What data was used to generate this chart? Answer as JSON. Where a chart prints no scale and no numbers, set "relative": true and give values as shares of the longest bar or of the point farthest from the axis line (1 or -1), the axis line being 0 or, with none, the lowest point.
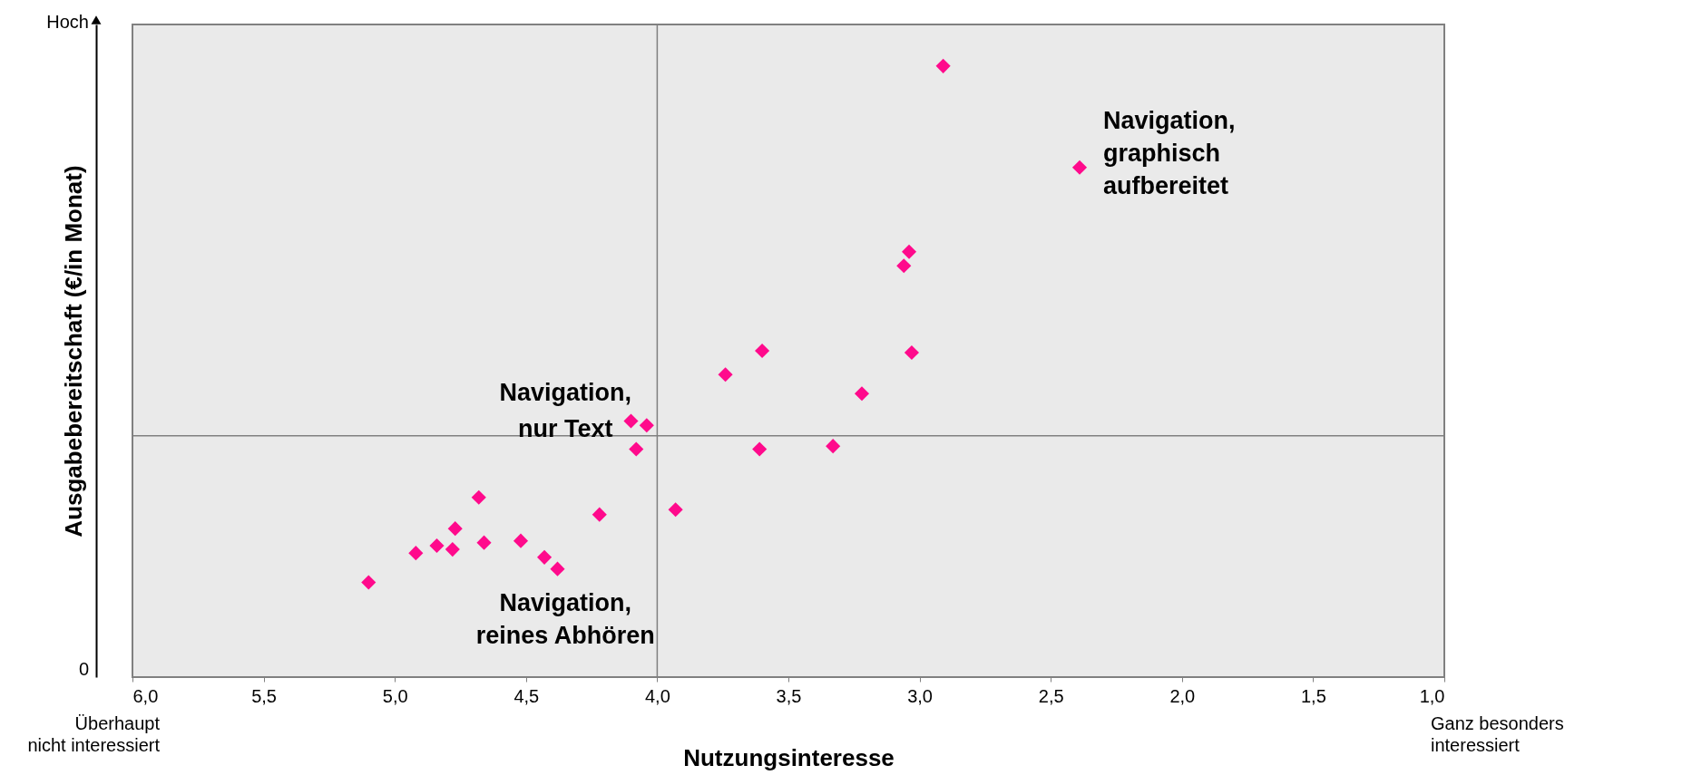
{
  "chart_data": {
    "type": "scatter",
    "xlabel": "Nutzungsinteresse",
    "ylabel": "Ausgabebereitschaft (€/in Monat)",
    "relative": true,
    "xlim": [
      6,
      1
    ],
    "xticks": [
      {
        "value": 6,
        "label": "6,0"
      },
      {
        "value": 5.5,
        "label": "5,5"
      },
      {
        "value": 5,
        "label": "5,0"
      },
      {
        "value": 4.5,
        "label": "4,5"
      },
      {
        "value": 4,
        "label": "4,0"
      },
      {
        "value": 3.5,
        "label": "3,5"
      },
      {
        "value": 3,
        "label": "3,0"
      },
      {
        "value": 2.5,
        "label": "2,5"
      },
      {
        "value": 2,
        "label": "2,0"
      },
      {
        "value": 1.5,
        "label": "1,5"
      },
      {
        "value": 1,
        "label": "1,0"
      }
    ],
    "x": [
      2.91,
      2.39,
      3.04,
      3.06,
      3.6,
      3.03,
      3.74,
      3.22,
      4.1,
      4.04,
      4.08,
      3.61,
      3.33,
      4.68,
      4.22,
      3.93,
      4.77,
      4.84,
      4.78,
      4.92,
      4.66,
      4.52,
      4.43,
      4.38,
      5.1
    ],
    "series": [
      {
        "color": "#ff0a8c",
        "values": [
          1.0,
          0.834,
          0.696,
          0.673,
          0.534,
          0.531,
          0.495,
          0.464,
          0.419,
          0.412,
          0.373,
          0.373,
          0.378,
          0.294,
          0.266,
          0.274,
          0.243,
          0.215,
          0.209,
          0.203,
          0.22,
          0.223,
          0.196,
          0.177,
          0.155
        ]
      }
    ],
    "marker": "diamond",
    "grid": false,
    "ref_lines": [
      {
        "axis": "x",
        "value": 4,
        "color": "#808080"
      },
      {
        "axis": "y",
        "value": 0.395,
        "color": "#808080"
      }
    ],
    "annotations": [
      "Navigation,\ngraphisch\naufbereitet",
      "Navigation,\nnur Text",
      "Navigation,\nreines Abhören",
      "Überhaupt\nnicht interessiert",
      "Ganz besonders\ninteressiert",
      "0",
      "Hoch"
    ]
  }
}
